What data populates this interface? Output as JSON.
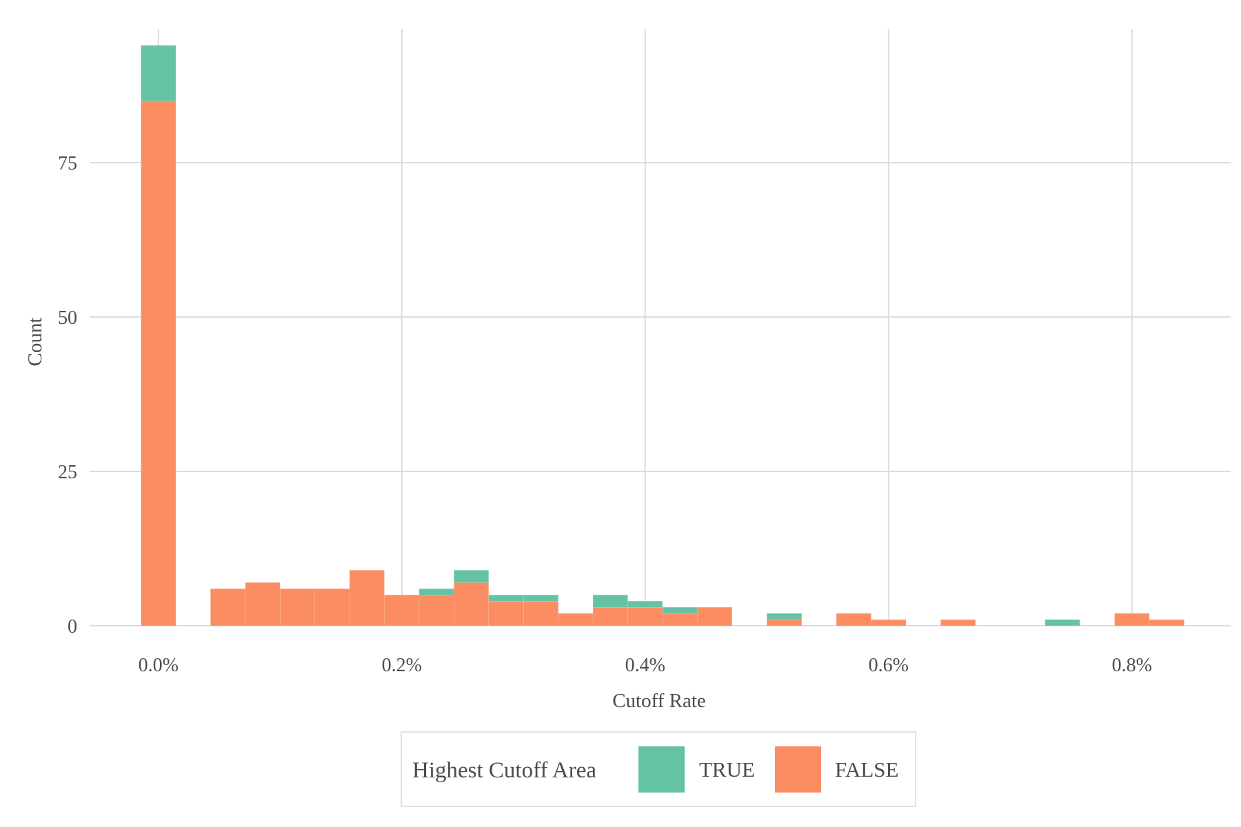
{
  "chart_data": {
    "type": "bar",
    "subtype": "stacked-histogram",
    "xlabel": "Cutoff Rate",
    "ylabel": "Count",
    "xlim": [
      -0.0565,
      0.8811
    ],
    "ylim": [
      0,
      98
    ],
    "x_ticks": [
      {
        "value": 0.0,
        "label": "0.0%"
      },
      {
        "value": 0.2,
        "label": "0.2%"
      },
      {
        "value": 0.4,
        "label": "0.4%"
      },
      {
        "value": 0.6,
        "label": "0.6%"
      },
      {
        "value": 0.8,
        "label": "0.8%"
      }
    ],
    "y_ticks": [
      {
        "value": 0,
        "label": "0"
      },
      {
        "value": 25,
        "label": "25"
      },
      {
        "value": 50,
        "label": "50"
      },
      {
        "value": 75,
        "label": "75"
      }
    ],
    "grid": true,
    "legend": {
      "title": "Highest Cutoff Area",
      "position": "bottom",
      "entries": [
        {
          "label": "TRUE",
          "color": "#66c2a5"
        },
        {
          "label": "FALSE",
          "color": "#fc8d62"
        }
      ]
    },
    "bin_centers": [
      0.0,
      0.0286,
      0.0571,
      0.0857,
      0.1143,
      0.1429,
      0.1714,
      0.2,
      0.2286,
      0.2571,
      0.2857,
      0.3143,
      0.3429,
      0.3714,
      0.4,
      0.4286,
      0.4571,
      0.4857,
      0.5143,
      0.5429,
      0.5714,
      0.6,
      0.6286,
      0.6571,
      0.6857,
      0.7143,
      0.7429,
      0.7714,
      0.8,
      0.8286
    ],
    "series": [
      {
        "name": "FALSE",
        "color": "#fc8d62",
        "values": [
          85,
          0,
          6,
          7,
          6,
          6,
          9,
          5,
          5,
          7,
          4,
          4,
          2,
          3,
          3,
          2,
          3,
          0,
          1,
          0,
          2,
          1,
          0,
          1,
          0,
          0,
          0,
          0,
          2,
          1
        ]
      },
      {
        "name": "TRUE",
        "color": "#66c2a5",
        "values": [
          9,
          0,
          0,
          0,
          0,
          0,
          0,
          0,
          1,
          2,
          1,
          1,
          0,
          2,
          1,
          1,
          0,
          0,
          1,
          0,
          0,
          0,
          0,
          0,
          0,
          0,
          1,
          0,
          0,
          0
        ]
      }
    ]
  },
  "colors": {
    "grid": "#dddddd",
    "axis_text": "#4d4d4d",
    "legend_border": "#d9d9d9"
  }
}
